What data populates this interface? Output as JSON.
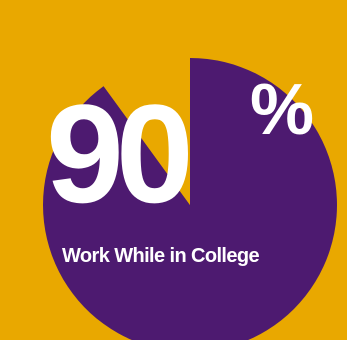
{
  "chart_data": {
    "type": "pie",
    "slices": [
      {
        "label": "Work While in College",
        "value": 90
      },
      {
        "label": "",
        "value": 10
      }
    ],
    "center_number": "90",
    "center_unit": "%",
    "caption": "Work While in College"
  },
  "colors": {
    "background": "#E9A800",
    "filled_slice": "#4D1A70",
    "empty_slice": "#E9A800",
    "text": "#FFFFFF"
  }
}
